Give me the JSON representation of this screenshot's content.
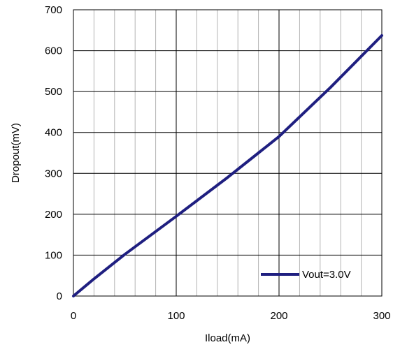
{
  "chart_data": {
    "type": "line",
    "title": "",
    "xlabel": "Iload(mA)",
    "ylabel": "Dropout(mV)",
    "xlim": [
      0,
      300
    ],
    "ylim": [
      0,
      700
    ],
    "x_ticks": [
      "0",
      "100",
      "200",
      "300"
    ],
    "y_ticks": [
      "0",
      "100",
      "200",
      "300",
      "400",
      "500",
      "600",
      "700"
    ],
    "grid": true,
    "legend_position": "bottom-right",
    "series": [
      {
        "name": "Vout=3.0V",
        "color": "#1f1f80",
        "x": [
          0,
          20,
          50,
          100,
          150,
          180,
          200,
          250,
          300
        ],
        "y": [
          0,
          42,
          102,
          195,
          290,
          350,
          390,
          510,
          637
        ]
      }
    ]
  }
}
